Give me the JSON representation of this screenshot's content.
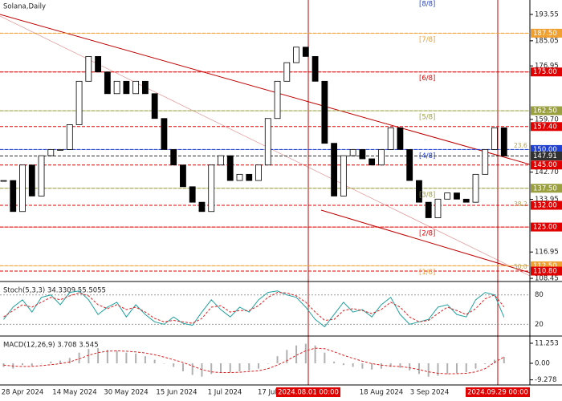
{
  "chart_data": {
    "type": "candlestick",
    "title": "Solana,Daily",
    "close": [
      140,
      130,
      145,
      135,
      148,
      150,
      150,
      158,
      172,
      180,
      175,
      168,
      172,
      168,
      172,
      168,
      160,
      150,
      145,
      138,
      133,
      130,
      145,
      148,
      140,
      142,
      140,
      145,
      160,
      172,
      178,
      183,
      180,
      172,
      152,
      135,
      148,
      150,
      147,
      145,
      150,
      157,
      150,
      140,
      133,
      128,
      134,
      136,
      134,
      133,
      142,
      150,
      157,
      147.91
    ],
    "ylim": [
      107.7,
      198.2
    ],
    "yticks": [
      193.55,
      185.05,
      176.95,
      {
        "value": 159.7,
        "label": "159.70"
      },
      {
        "value": 142.7,
        "label": "142.70"
      },
      133.95,
      116.95,
      108.45
    ],
    "axis_markers": [
      {
        "value": 187.5,
        "label": "187.50",
        "color": "#f0a030"
      },
      {
        "value": 175,
        "label": "175.00",
        "color": "#e00000"
      },
      {
        "value": 162.5,
        "label": "162.50",
        "color": "#9aa040"
      },
      {
        "value": 157.4,
        "label": "157.40",
        "color": "#e00000"
      },
      {
        "value": 150,
        "label": "150.00",
        "color": "#2040d0"
      },
      {
        "value": 147.91,
        "label": "147.91",
        "color": "#303030"
      },
      {
        "value": 145,
        "label": "145.00",
        "color": "#e00000"
      },
      {
        "value": 137.5,
        "label": "137.50",
        "color": "#9aa040"
      },
      {
        "value": 132,
        "label": "132.00",
        "color": "#e00000"
      },
      {
        "value": 125,
        "label": "125.00",
        "color": "#e00000"
      },
      {
        "value": 112.5,
        "label": "112.50",
        "color": "#f0a030"
      },
      {
        "value": 110.8,
        "label": "110.80",
        "color": "#e00000"
      }
    ],
    "murrey": [
      {
        "label": "[8/8]",
        "value": 200,
        "color": "#2040d0"
      },
      {
        "label": "[7/8]",
        "value": 187.5,
        "color": "#f0a030"
      },
      {
        "label": "[6/8]",
        "value": 175,
        "color": "#e00000"
      },
      {
        "label": "[5/8]",
        "value": 162.5,
        "color": "#9aa040"
      },
      {
        "label": "[4/8]",
        "value": 150,
        "color": "#2040d0"
      },
      {
        "label": "[3/8]",
        "value": 137.5,
        "color": "#9aa040"
      },
      {
        "label": "[2/8]",
        "value": 125,
        "color": "#e00000"
      },
      {
        "label": "[1/8]",
        "value": 112.5,
        "color": "#f0a030"
      }
    ],
    "fib_labels": [
      "23.6",
      "38.2",
      "50.0"
    ],
    "x_labels": [
      "28 Apr 2024",
      "14 May 2024",
      "30 May 2024",
      "15 Jun 2024",
      "1 Jul 2024",
      "17 Jul 2024",
      "2024.08.01 00:00",
      "18 Aug 2024",
      "3 Sep 2024",
      "2024.09.29 00:00"
    ],
    "stoch": {
      "title": "Stoch(5,3,3) 34.3309 55.5055",
      "ylim": [
        -2.3,
        105.7
      ],
      "yticks": [
        80,
        20
      ],
      "k": [
        30,
        55,
        70,
        45,
        75,
        80,
        60,
        85,
        88,
        70,
        40,
        55,
        65,
        35,
        60,
        40,
        25,
        20,
        35,
        22,
        18,
        45,
        70,
        50,
        35,
        55,
        45,
        70,
        85,
        88,
        80,
        75,
        55,
        30,
        15,
        40,
        65,
        45,
        50,
        35,
        60,
        75,
        40,
        20,
        25,
        30,
        55,
        60,
        40,
        35,
        70,
        85,
        80,
        34.3309
      ],
      "d": [
        35,
        48,
        60,
        55,
        65,
        75,
        70,
        78,
        84,
        78,
        60,
        52,
        60,
        50,
        55,
        45,
        32,
        25,
        28,
        25,
        22,
        32,
        55,
        58,
        45,
        48,
        48,
        58,
        75,
        85,
        84,
        78,
        65,
        45,
        28,
        30,
        48,
        52,
        48,
        42,
        50,
        65,
        55,
        35,
        25,
        28,
        42,
        55,
        48,
        40,
        52,
        72,
        80,
        55.5055
      ]
    },
    "macd": {
      "title": "MACD(12,26,9) 3.708 3.545",
      "ylim": [
        -12.15,
        14.86
      ],
      "yticks": [
        11.253,
        {
          "value": 0,
          "label": "0.00"
        },
        -9.278
      ],
      "values": [
        -2,
        -3,
        -1,
        -1.5,
        0,
        1,
        1.5,
        3,
        6,
        8,
        8.5,
        7.5,
        7,
        6,
        5.5,
        4,
        2,
        0,
        -2,
        -4.5,
        -6.5,
        -7.5,
        -6,
        -5,
        -5,
        -4.5,
        -4,
        -3,
        0,
        4,
        7.5,
        10,
        11,
        10,
        6,
        1,
        -1,
        -2,
        -3,
        -3.5,
        -3,
        -2,
        -2.5,
        -4,
        -6,
        -7.5,
        -7,
        -6,
        -5.5,
        -5,
        -3,
        -0.5,
        2,
        3.708
      ],
      "signal": [
        -1,
        -1.5,
        -1.8,
        -1.7,
        -1.3,
        -0.8,
        -0.2,
        0.8,
        2.5,
        4.5,
        6,
        6.8,
        7,
        6.8,
        6.4,
        5.8,
        4.8,
        3.5,
        2,
        0.5,
        -1.5,
        -3.5,
        -4.8,
        -5.2,
        -5.2,
        -5,
        -4.6,
        -4.2,
        -3,
        -1,
        1.5,
        4.5,
        7,
        8.5,
        8.2,
        6.5,
        4.5,
        2.8,
        1.2,
        -0.2,
        -1,
        -1.5,
        -1.8,
        -2.5,
        -3.5,
        -4.8,
        -5.6,
        -5.9,
        -5.8,
        -5.6,
        -4.8,
        -3,
        0.5,
        3.545
      ]
    }
  }
}
